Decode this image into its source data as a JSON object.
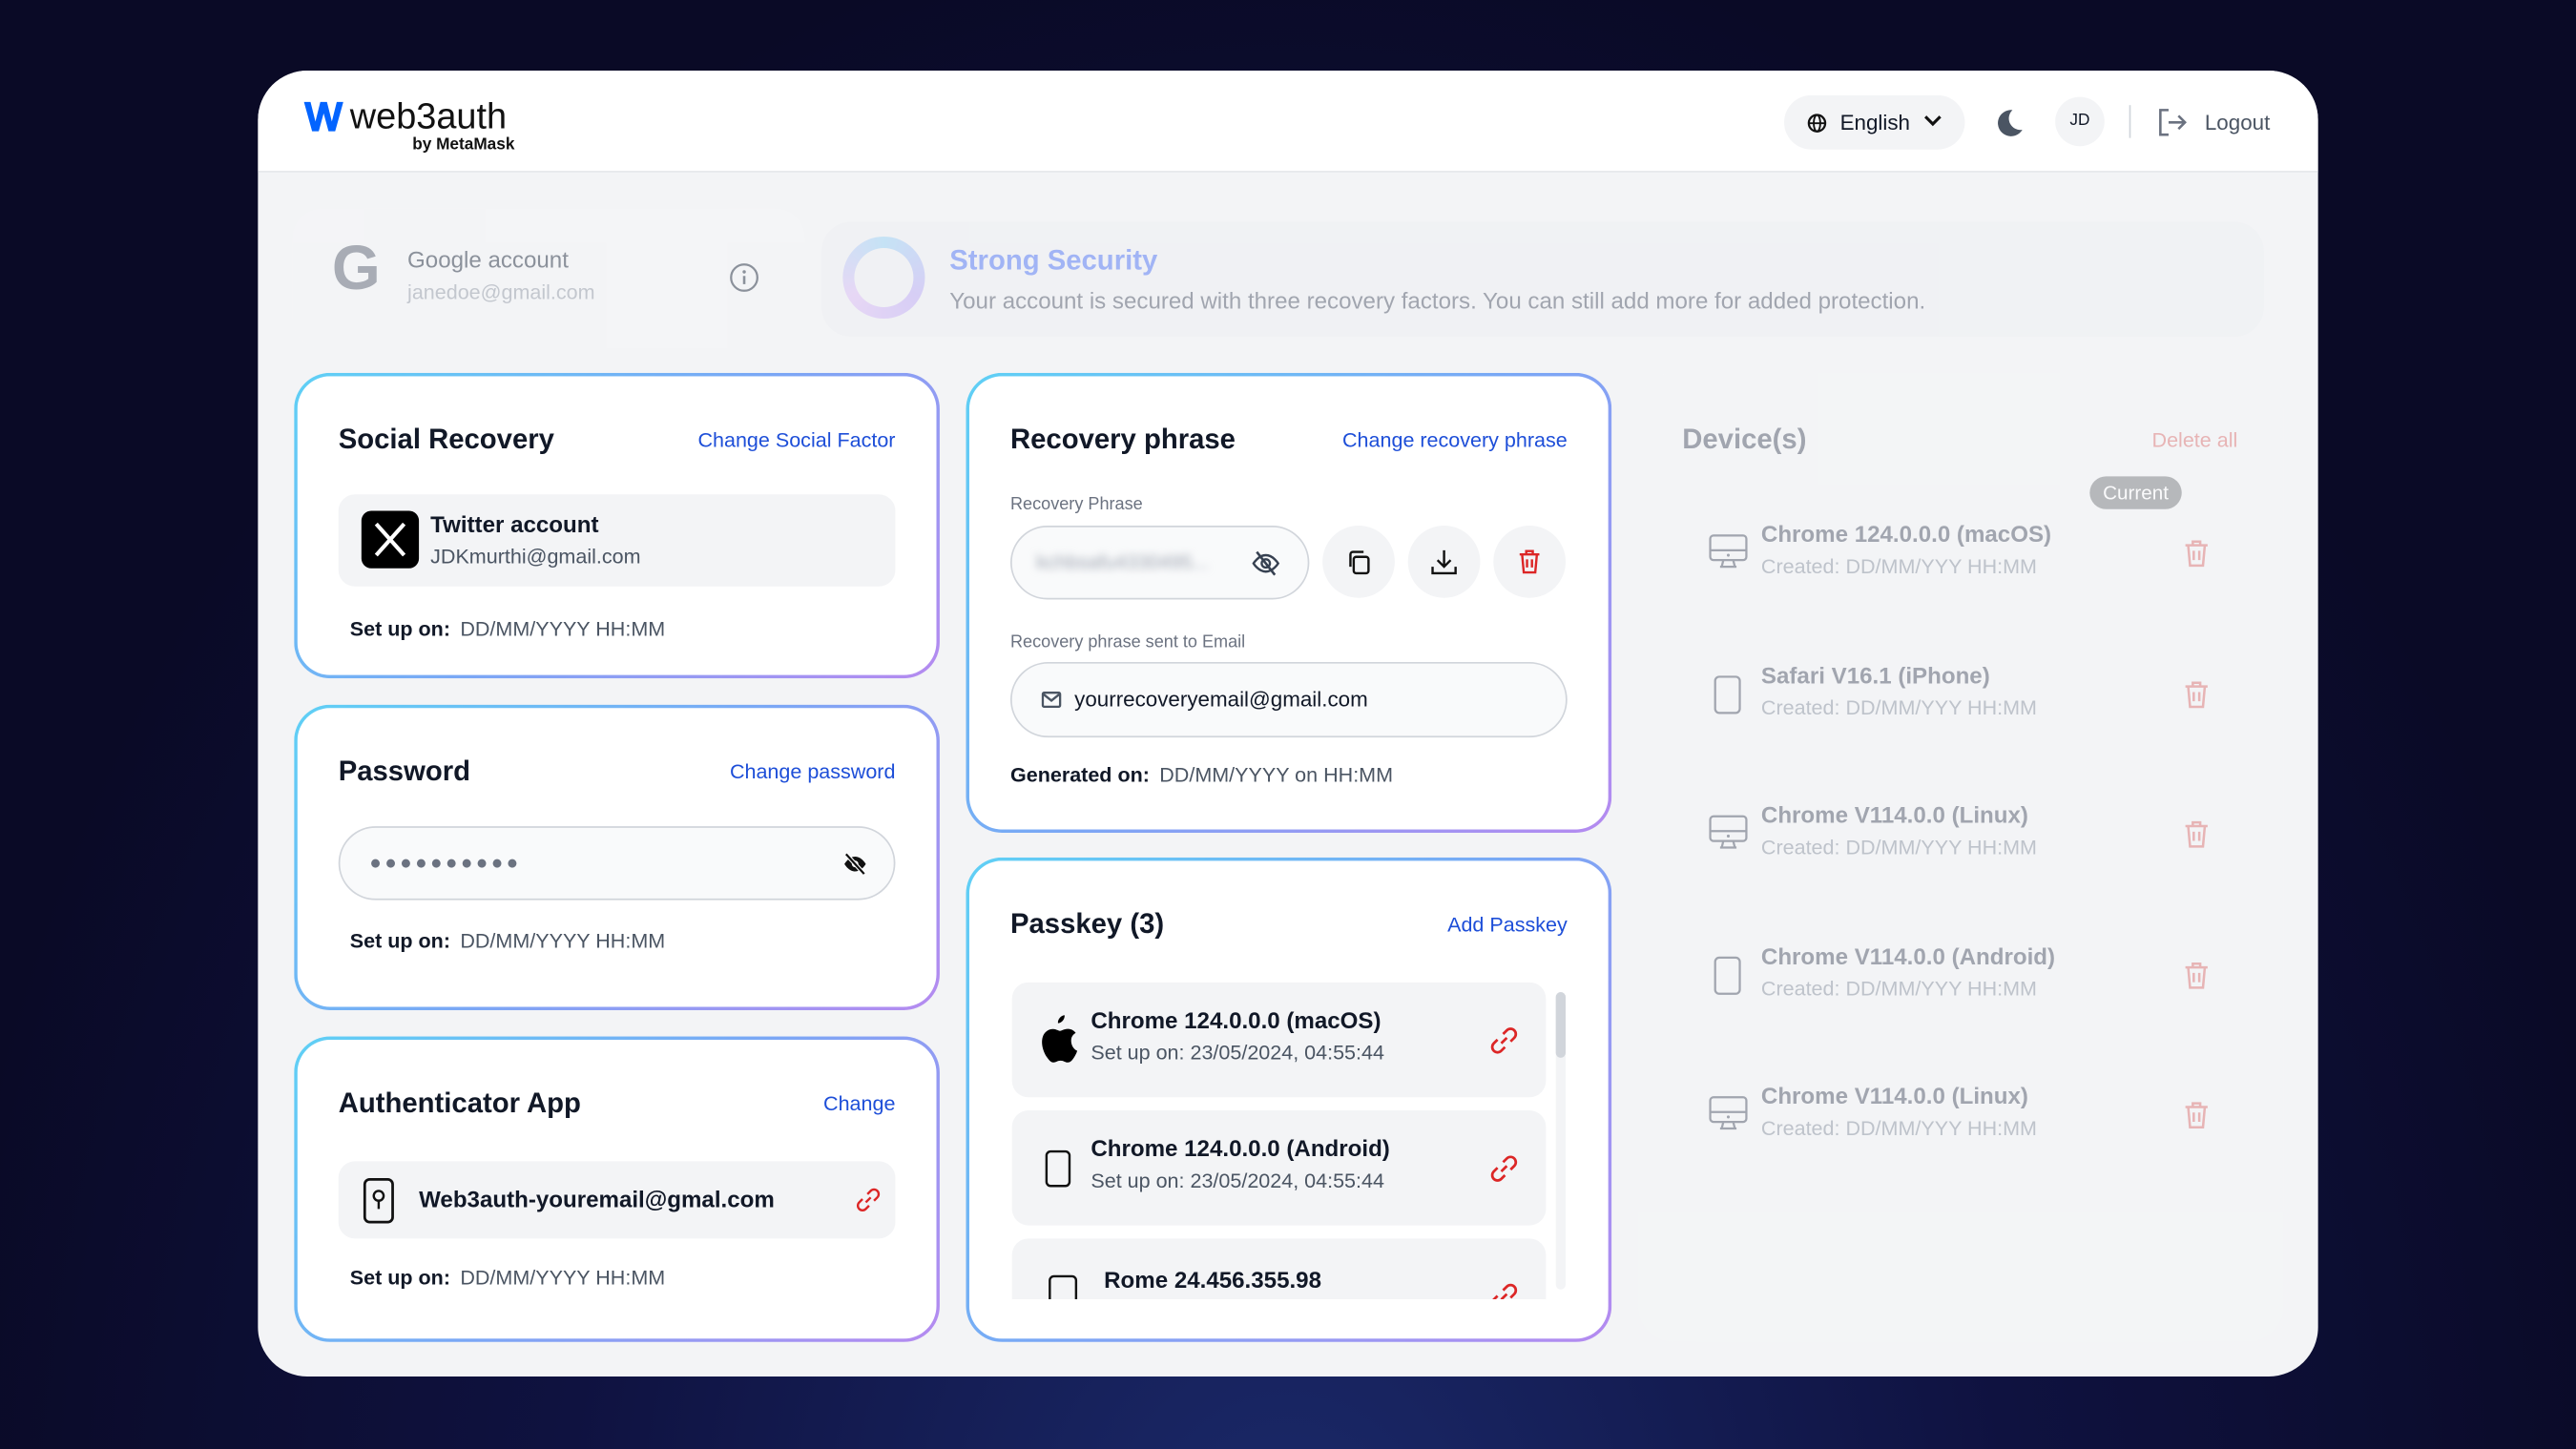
{
  "header": {
    "logo_text": "web3auth",
    "logo_sub": "by MetaMask",
    "language": "English",
    "avatar_initials": "JD",
    "logout_label": "Logout"
  },
  "account": {
    "label": "Google account",
    "email": "janedoe@gmail.com"
  },
  "security": {
    "title": "Strong Security",
    "description": "Your account is secured with three recovery factors. You can still add more for added protection."
  },
  "social_recovery": {
    "title": "Social Recovery",
    "action": "Change Social Factor",
    "account_name": "Twitter account",
    "account_email": "JDKmurthi@gmail.com",
    "setup_label": "Set up on:",
    "setup_value": "DD/MM/YYYY HH:MM"
  },
  "password": {
    "title": "Password",
    "action": "Change password",
    "masked_value": "●●●●●●●●●●",
    "setup_label": "Set up on:",
    "setup_value": "DD/MM/YYYY HH:MM"
  },
  "authenticator": {
    "title": "Authenticator App",
    "action": "Change",
    "account": "Web3auth-youremail@gmal.com",
    "setup_label": "Set up on:",
    "setup_value": "DD/MM/YYYY HH:MM"
  },
  "recovery_phrase": {
    "title": "Recovery phrase",
    "action": "Change recovery phrase",
    "phrase_label": "Recovery Phrase",
    "phrase_masked": "kchbsafu4330495...",
    "email_label": "Recovery phrase sent to Email",
    "email": "yourrecoveryemail@gmail.com",
    "generated_label": "Generated on:",
    "generated_value": "DD/MM/YYYY on HH:MM"
  },
  "passkey": {
    "title": "Passkey (3)",
    "action": "Add Passkey",
    "items": [
      {
        "name": "Chrome 124.0.0.0 (macOS)",
        "setup": "Set up on: 23/05/2024, 04:55:44",
        "icon": "apple-icon"
      },
      {
        "name": "Chrome 124.0.0.0 (Android)",
        "setup": "Set up on: 23/05/2024, 04:55:44",
        "icon": "phone-icon"
      },
      {
        "name": "Rome 24.456.355.98",
        "setup": "",
        "icon": "phone-icon"
      }
    ]
  },
  "devices": {
    "title": "Device(s)",
    "action": "Delete all",
    "current_badge": "Current",
    "items": [
      {
        "name": "Chrome 124.0.0.0 (macOS)",
        "created": "Created: DD/MM/YYY HH:MM",
        "icon": "desktop-icon"
      },
      {
        "name": "Safari V16.1 (iPhone)",
        "created": "Created: DD/MM/YYY HH:MM",
        "icon": "phone-icon"
      },
      {
        "name": "Chrome V114.0.0 (Linux)",
        "created": "Created: DD/MM/YYY HH:MM",
        "icon": "desktop-icon"
      },
      {
        "name": "Chrome V114.0.0 (Android)",
        "created": "Created: DD/MM/YYY HH:MM",
        "icon": "phone-icon"
      },
      {
        "name": "Chrome V114.0.0 (Linux)",
        "created": "Created: DD/MM/YYY HH:MM",
        "icon": "desktop-icon"
      }
    ]
  },
  "colors": {
    "accent": "#1d4ed8",
    "danger": "#dc2626",
    "logo_blue": "#0364ff"
  }
}
